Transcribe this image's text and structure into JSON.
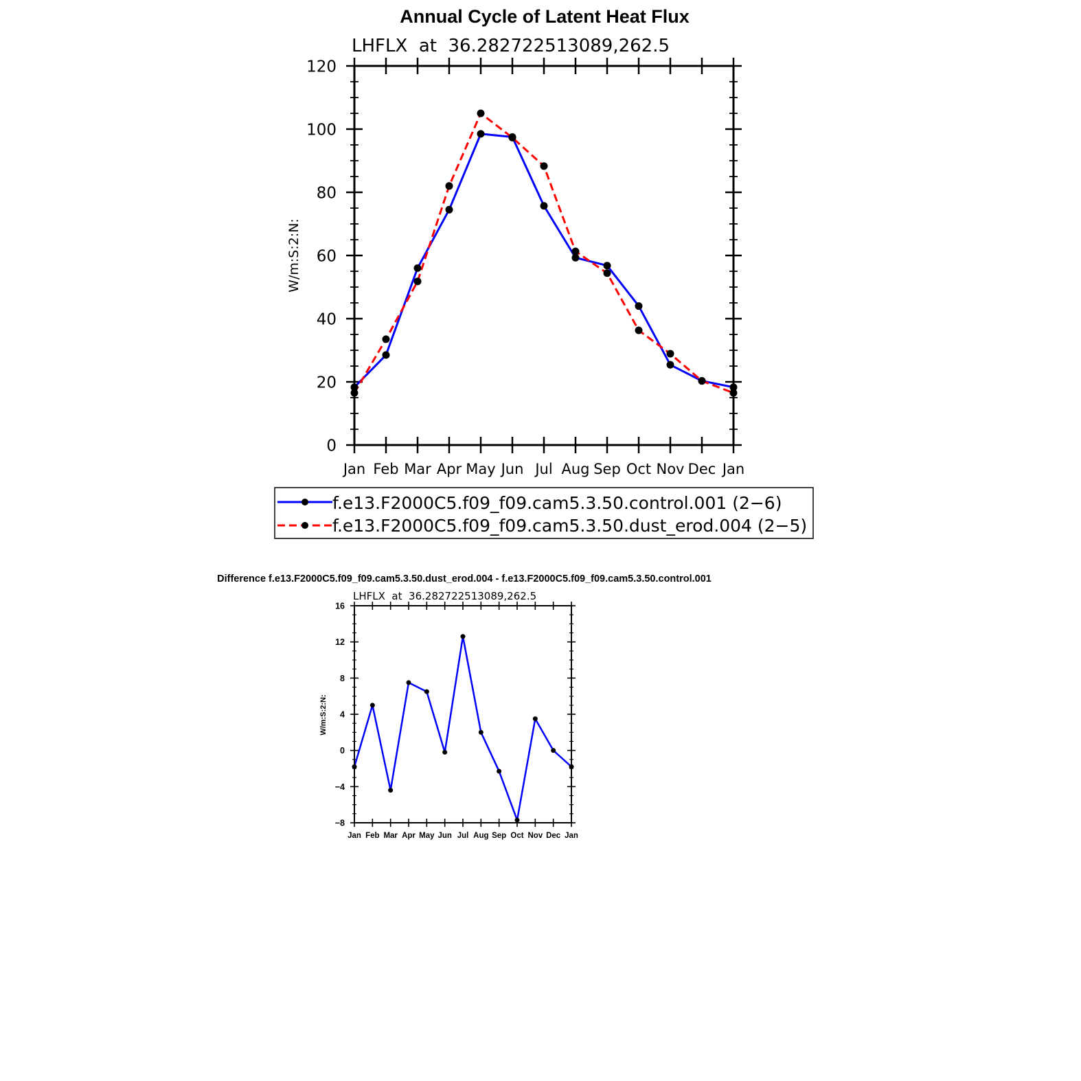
{
  "chart_data": [
    {
      "type": "line",
      "title": "Annual Cycle of Latent Heat Flux",
      "subtitle": "LHFLX  at  36.282722513089,262.5",
      "xlabel": "",
      "ylabel": "W/m:S:2:N:",
      "categories": [
        "Jan",
        "Feb",
        "Mar",
        "Apr",
        "May",
        "Jun",
        "Jul",
        "Aug",
        "Sep",
        "Oct",
        "Nov",
        "Dec",
        "Jan"
      ],
      "ylim": [
        0,
        120
      ],
      "yticks": [
        "0",
        "20",
        "40",
        "60",
        "80",
        "100",
        "120"
      ],
      "series": [
        {
          "name": "f.e13.F2000C5.f09_f09.cam5.3.50.control.001 (2−6)",
          "color": "#0000ff",
          "style": "solid",
          "values": [
            18.3,
            28.5,
            56.0,
            74.5,
            98.5,
            97.5,
            75.7,
            59.3,
            56.8,
            44.0,
            25.4,
            20.3,
            18.3
          ]
        },
        {
          "name": "f.e13.F2000C5.f09_f09.cam5.3.50.dust_erod.004 (2−5)",
          "color": "#ff0000",
          "style": "dashed",
          "values": [
            16.5,
            33.5,
            51.8,
            82.0,
            105.0,
            97.3,
            88.3,
            61.3,
            54.4,
            36.3,
            28.9,
            20.3,
            16.5
          ]
        }
      ]
    },
    {
      "type": "line",
      "title": "Difference f.e13.F2000C5.f09_f09.cam5.3.50.dust_erod.004 - f.e13.F2000C5.f09_f09.cam5.3.50.control.001",
      "subtitle": "LHFLX  at  36.282722513089,262.5",
      "xlabel": "",
      "ylabel": "W/m:S:2:N:",
      "categories": [
        "Jan",
        "Feb",
        "Mar",
        "Apr",
        "May",
        "Jun",
        "Jul",
        "Aug",
        "Sep",
        "Oct",
        "Nov",
        "Dec",
        "Jan"
      ],
      "ylim": [
        -8,
        16
      ],
      "yticks": [
        "−8",
        "−4",
        "0",
        "4",
        "8",
        "12",
        "16"
      ],
      "series": [
        {
          "name": "difference",
          "color": "#0000ff",
          "style": "solid",
          "values": [
            -1.8,
            5.0,
            -4.4,
            7.5,
            6.5,
            -0.2,
            12.6,
            2.0,
            -2.3,
            -7.7,
            3.5,
            0.0,
            -1.8
          ]
        }
      ]
    }
  ]
}
